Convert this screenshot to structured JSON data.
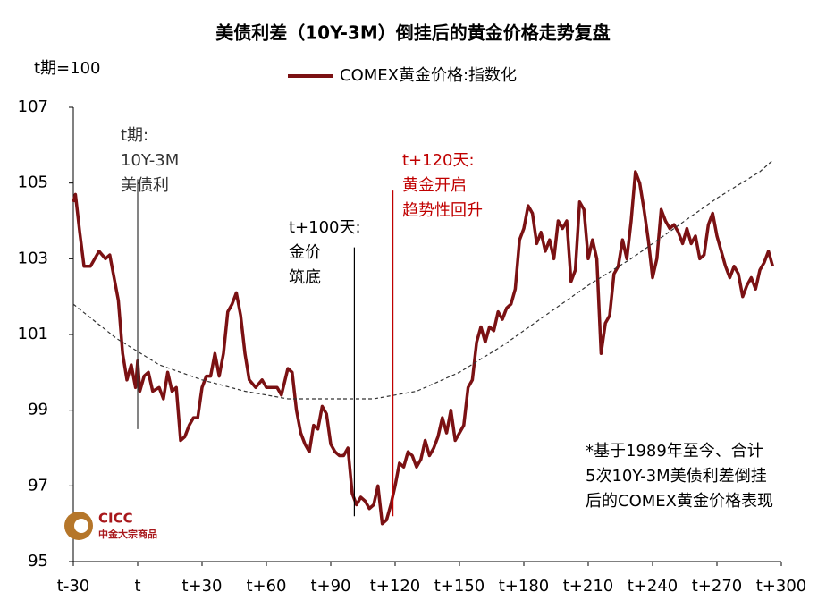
{
  "chart_data": {
    "type": "line",
    "title": "美债利差（10Y-3M）倒挂后的黄金价格走势复盘",
    "y_label": "t期=100",
    "xlim": [
      -30,
      300
    ],
    "ylim": [
      95,
      107
    ],
    "yticks": [
      95,
      97,
      99,
      101,
      103,
      105,
      107
    ],
    "xticks": [
      {
        "value": -30,
        "label": "t-30"
      },
      {
        "value": 0,
        "label": "t"
      },
      {
        "value": 30,
        "label": "t+30"
      },
      {
        "value": 60,
        "label": "t+60"
      },
      {
        "value": 90,
        "label": "t+90"
      },
      {
        "value": 120,
        "label": "t+120"
      },
      {
        "value": 150,
        "label": "t+150"
      },
      {
        "value": 180,
        "label": "t+180"
      },
      {
        "value": 210,
        "label": "t+210"
      },
      {
        "value": 240,
        "label": "t+240"
      },
      {
        "value": 270,
        "label": "t+270"
      },
      {
        "value": 300,
        "label": "t+300"
      }
    ],
    "legend": "top",
    "series": [
      {
        "name": "COMEX黄金价格:指数化",
        "color": "#7b1113",
        "x": [
          -30,
          -29,
          -27,
          -25,
          -22,
          -20,
          -18,
          -15,
          -13,
          -11,
          -9,
          -7,
          -5,
          -3,
          -1,
          0,
          1,
          3,
          5,
          7,
          10,
          12,
          14,
          16,
          18,
          20,
          22,
          24,
          26,
          28,
          30,
          32,
          34,
          36,
          38,
          40,
          42,
          44,
          46,
          48,
          50,
          52,
          55,
          58,
          60,
          62,
          65,
          67,
          70,
          72,
          74,
          76,
          78,
          80,
          82,
          84,
          86,
          88,
          90,
          92,
          94,
          96,
          98,
          100,
          102,
          104,
          106,
          108,
          110,
          112,
          114,
          116,
          118,
          120,
          122,
          124,
          126,
          128,
          130,
          132,
          134,
          136,
          138,
          140,
          142,
          144,
          146,
          148,
          150,
          152,
          154,
          156,
          158,
          160,
          162,
          164,
          166,
          168,
          170,
          172,
          174,
          176,
          178,
          180,
          182,
          184,
          186,
          188,
          190,
          192,
          194,
          196,
          198,
          200,
          202,
          204,
          206,
          208,
          210,
          212,
          214,
          216,
          218,
          220,
          222,
          224,
          226,
          228,
          230,
          232,
          234,
          236,
          238,
          240,
          242,
          244,
          246,
          248,
          250,
          252,
          254,
          256,
          258,
          260,
          262,
          264,
          266,
          268,
          270,
          272,
          274,
          276,
          278,
          280,
          282,
          284,
          286,
          288,
          290,
          292,
          294,
          296
        ],
        "values": [
          104.5,
          104.7,
          103.7,
          102.8,
          102.8,
          103.0,
          103.2,
          103.0,
          103.1,
          102.5,
          101.9,
          100.5,
          99.8,
          100.2,
          99.6,
          100.3,
          99.5,
          99.9,
          100.0,
          99.5,
          99.6,
          99.3,
          100.0,
          99.5,
          99.6,
          98.2,
          98.3,
          98.6,
          98.8,
          98.8,
          99.6,
          99.9,
          99.9,
          100.5,
          99.9,
          100.5,
          101.6,
          101.8,
          102.1,
          101.5,
          100.5,
          99.8,
          99.6,
          99.8,
          99.6,
          99.6,
          99.6,
          99.4,
          100.1,
          100.0,
          99.0,
          98.4,
          98.1,
          97.9,
          98.6,
          98.5,
          99.1,
          98.9,
          98.1,
          97.9,
          97.8,
          97.8,
          98.0,
          96.8,
          96.5,
          96.7,
          96.6,
          96.4,
          96.5,
          97.0,
          96.0,
          96.1,
          96.5,
          97.0,
          97.6,
          97.5,
          97.9,
          97.8,
          97.5,
          97.7,
          98.2,
          97.8,
          98.0,
          98.3,
          98.8,
          98.4,
          99.0,
          98.2,
          98.4,
          98.6,
          99.6,
          99.8,
          100.8,
          101.2,
          100.8,
          101.2,
          101.1,
          101.6,
          101.4,
          101.7,
          101.8,
          102.2,
          103.5,
          103.8,
          104.4,
          104.2,
          103.4,
          103.7,
          103.2,
          103.5,
          103.0,
          104.0,
          103.8,
          104.0,
          102.4,
          102.7,
          104.5,
          104.3,
          103.0,
          103.5,
          103.0,
          100.5,
          101.3,
          101.5,
          102.6,
          102.8,
          103.5,
          103.0,
          104.0,
          105.3,
          105.0,
          104.3,
          103.5,
          102.5,
          103.0,
          104.3,
          104.0,
          103.8,
          103.9,
          103.7,
          103.4,
          103.8,
          103.4,
          103.6,
          103.0,
          103.1,
          103.9,
          104.2,
          103.6,
          103.2,
          102.8,
          102.5,
          102.8,
          102.6,
          102.0,
          102.3,
          102.5,
          102.2,
          102.7,
          102.9,
          103.2,
          102.8
        ]
      },
      {
        "color": "#333333",
        "dashed": true,
        "x": [
          -30,
          -10,
          10,
          30,
          50,
          70,
          90,
          110,
          130,
          150,
          170,
          190,
          210,
          230,
          250,
          270,
          290,
          296
        ],
        "values": [
          101.8,
          100.9,
          100.2,
          99.8,
          99.5,
          99.3,
          99.3,
          99.3,
          99.5,
          100.0,
          100.7,
          101.5,
          102.3,
          103.0,
          103.8,
          104.6,
          105.3,
          105.6
        ]
      }
    ],
    "annotations": [
      {
        "x": 0,
        "y": [
          98.5,
          105.1
        ],
        "color": "#333333",
        "lines": [
          "t期:",
          "10Y-3M",
          "美债利"
        ]
      },
      {
        "x": 101,
        "y": [
          96.2,
          103.3
        ],
        "color": "#000000",
        "lines": [
          "t+100天:",
          "金价",
          "筑底"
        ]
      },
      {
        "x": 119,
        "y": [
          96.2,
          104.8
        ],
        "color": "#c00000",
        "lines": [
          "t+120天:",
          "黄金开启",
          "趋势性回升"
        ]
      }
    ],
    "note": [
      "*基于1989年至今、合计",
      "5次10Y-3M美债利差倒挂",
      "后的COMEX黄金价格表现"
    ],
    "logo": [
      "CICC",
      "中金大宗商品"
    ]
  }
}
